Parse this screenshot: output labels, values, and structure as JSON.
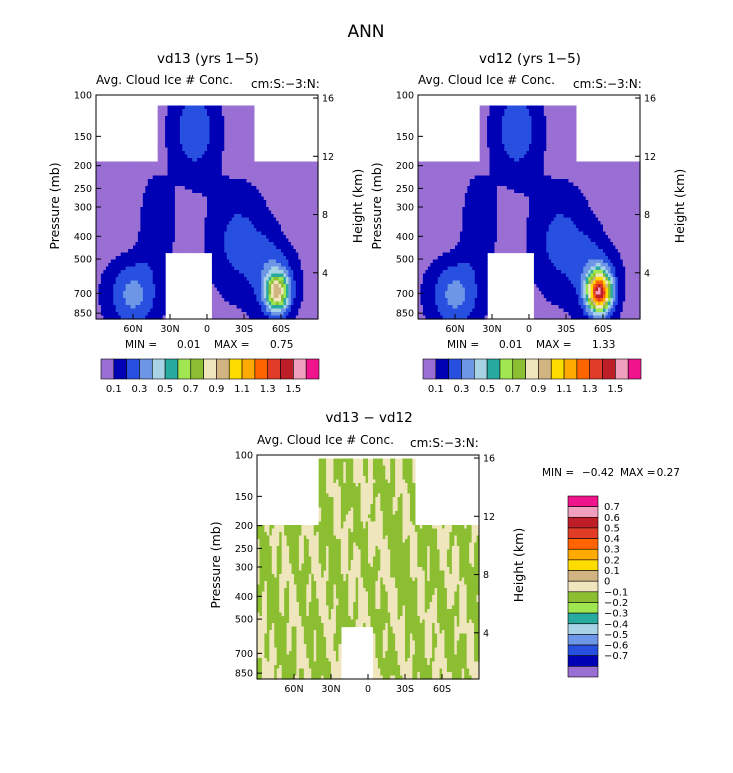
{
  "figure": {
    "title": "ANN"
  },
  "chart_data": [
    {
      "type": "heatmap",
      "title": "vd13 (yrs 1−5)",
      "subtitle_left": "Avg. Cloud Ice # Conc.",
      "subtitle_right": "cm:S:−3:N:",
      "ylabel": "Pressure (mb)",
      "y2label": "Height (km)",
      "pressure_ticks": [
        "100",
        "150",
        "200",
        "250",
        "300",
        "400",
        "500",
        "700",
        "850"
      ],
      "height_ticks": [
        "16",
        "12",
        "8",
        "4"
      ],
      "x_ticks": [
        "60N",
        "30N",
        "0",
        "30S",
        "60S"
      ],
      "min_label": "MIN =",
      "min_value": "0.01",
      "max_label": "MAX =",
      "max_value": "0.75",
      "peak_level": 0.75
    },
    {
      "type": "heatmap",
      "title": "vd12 (yrs 1−5)",
      "subtitle_left": "Avg. Cloud Ice # Conc.",
      "subtitle_right": "cm:S:−3:N:",
      "ylabel": "Pressure (mb)",
      "y2label": "Height (km)",
      "pressure_ticks": [
        "100",
        "150",
        "200",
        "250",
        "300",
        "400",
        "500",
        "700",
        "850"
      ],
      "height_ticks": [
        "16",
        "12",
        "8",
        "4"
      ],
      "x_ticks": [
        "60N",
        "30N",
        "0",
        "30S",
        "60S"
      ],
      "min_label": "MIN =",
      "min_value": "0.01",
      "max_label": "MAX =",
      "max_value": "1.33",
      "peak_level": 1.33
    },
    {
      "type": "heatmap",
      "title": "vd13 − vd12",
      "subtitle_left": "Avg. Cloud Ice # Conc.",
      "subtitle_right": "cm:S:−3:N:",
      "ylabel": "Pressure (mb)",
      "y2label": "Height (km)",
      "pressure_ticks": [
        "100",
        "150",
        "200",
        "250",
        "300",
        "400",
        "500",
        "700",
        "850"
      ],
      "height_ticks": [
        "16",
        "12",
        "8",
        "4"
      ],
      "x_ticks": [
        "60N",
        "30N",
        "0",
        "30S",
        "60S"
      ],
      "min_label": "MIN =",
      "min_value": "−0.42",
      "max_label": "MAX =",
      "max_value": "0.27"
    }
  ],
  "colorbar_abs": {
    "labels": [
      "0.1",
      "0.3",
      "0.5",
      "0.7",
      "0.9",
      "1.1",
      "1.3",
      "1.5"
    ],
    "colors": [
      "#9a6fd4",
      "#0000b4",
      "#2850e0",
      "#6e96e6",
      "#a8d2e6",
      "#28aaa0",
      "#a0e650",
      "#8cbe32",
      "#f0e6be",
      "#d2b482",
      "#ffdc00",
      "#ffaa00",
      "#ff6400",
      "#e13c28",
      "#be1e28",
      "#f0a0be",
      "#f0148c"
    ]
  },
  "colorbar_diff": {
    "labels": [
      "0.7",
      "0.6",
      "0.5",
      "0.4",
      "0.3",
      "0.2",
      "0.1",
      "0",
      "−0.1",
      "−0.2",
      "−0.3",
      "−0.4",
      "−0.5",
      "−0.6",
      "−0.7"
    ],
    "colors": [
      "#f0148c",
      "#f0a0be",
      "#be1e28",
      "#e13c28",
      "#ff6400",
      "#ffaa00",
      "#ffdc00",
      "#d2b482",
      "#f0e6be",
      "#8cbe32",
      "#a0e650",
      "#28aaa0",
      "#a8d2e6",
      "#6e96e6",
      "#2850e0",
      "#0000b4",
      "#9a6fd4"
    ]
  }
}
